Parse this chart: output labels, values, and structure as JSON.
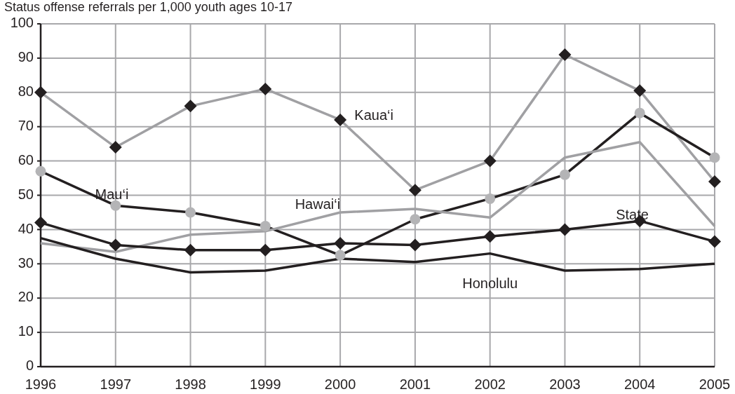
{
  "chart_data": {
    "type": "line",
    "title": "Status offense referrals per 1,000 youth ages 10-17",
    "categories": [
      "1996",
      "1997",
      "1998",
      "1999",
      "2000",
      "2001",
      "2002",
      "2003",
      "2004",
      "2005"
    ],
    "ylim": [
      0,
      100
    ],
    "yticks": [
      0,
      10,
      20,
      30,
      40,
      50,
      60,
      70,
      80,
      90,
      100
    ],
    "grid": true,
    "series": [
      {
        "name": "Kaua‘i",
        "color": "#a0a0a3",
        "marker": "diamond",
        "colors": [
          "#231f20",
          "#231f20",
          "#231f20",
          "#231f20",
          "#231f20",
          "#231f20",
          "#231f20",
          "#231f20",
          "#231f20",
          "#231f20"
        ],
        "values": [
          80,
          64,
          76,
          81,
          72,
          51.5,
          60,
          91,
          80.5,
          54
        ]
      },
      {
        "name": "Mau‘i",
        "color": "#231f20",
        "marker": "circle",
        "colors": [
          "#b4b4b6",
          "#b4b4b6",
          "#b4b4b6",
          "#b4b4b6",
          "#b4b4b6",
          "#b4b4b6",
          "#b4b4b6",
          "#b4b4b6",
          "#b4b4b6",
          "#b4b4b6"
        ],
        "values": [
          57,
          47,
          45,
          41,
          32.5,
          43,
          49,
          56,
          74,
          61
        ]
      },
      {
        "name": "Hawai‘i",
        "color": "#a0a0a3",
        "marker": "none",
        "values": [
          36,
          33.5,
          38.5,
          39.5,
          45,
          46,
          43.5,
          61,
          65.5,
          41
        ]
      },
      {
        "name": "State",
        "color": "#231f20",
        "marker": "diamond",
        "colors": [
          "#231f20",
          "#231f20",
          "#231f20",
          "#231f20",
          "#231f20",
          "#231f20",
          "#231f20",
          "#231f20",
          "#231f20",
          "#231f20"
        ],
        "values": [
          42,
          35.5,
          34,
          34,
          36,
          35.5,
          38,
          40,
          42.5,
          36.5
        ]
      },
      {
        "name": "Honolulu",
        "color": "#231f20",
        "marker": "none",
        "values": [
          37.5,
          31.5,
          27.5,
          28,
          31.5,
          30.5,
          33,
          28,
          28.5,
          30
        ]
      }
    ]
  }
}
